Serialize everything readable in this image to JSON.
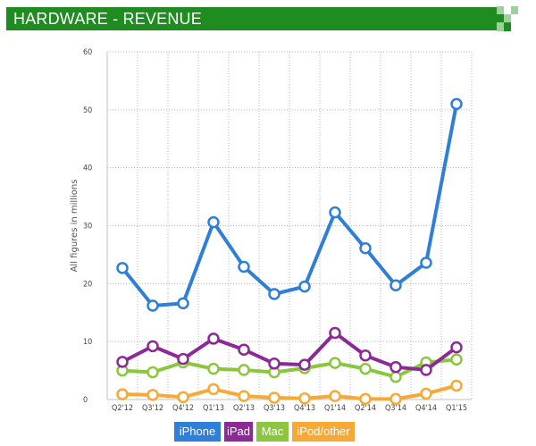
{
  "header": {
    "title": "HARDWARE - REVENUE"
  },
  "colors": {
    "banner": "#1e8c1e",
    "logo_light": "#9bd29b",
    "logo_dark": "#1e8c1e"
  },
  "chart_data": {
    "type": "line",
    "ylabel": "All figures in millions",
    "xlabel": "",
    "ylim": [
      0,
      60
    ],
    "yticks": [
      0,
      10,
      20,
      30,
      40,
      50,
      60
    ],
    "grid": true,
    "legend_position": "bottom",
    "categories": [
      "Q2'12",
      "Q3'12",
      "Q4'12",
      "Q1'13",
      "Q2'13",
      "Q3'13",
      "Q4'13",
      "Q1'14",
      "Q2'14",
      "Q3'14",
      "Q4'14",
      "Q1'15"
    ],
    "series": [
      {
        "name": "iPhone",
        "color": "#2f7ed8",
        "values": [
          22.7,
          16.2,
          16.6,
          30.6,
          22.9,
          18.2,
          19.5,
          32.3,
          26.1,
          19.7,
          23.6,
          51.0
        ]
      },
      {
        "name": "iPad",
        "color": "#8b2a96",
        "values": [
          6.5,
          9.2,
          7.0,
          10.5,
          8.6,
          6.2,
          6.0,
          11.5,
          7.6,
          5.6,
          5.1,
          9.0
        ]
      },
      {
        "name": "Mac",
        "color": "#8cc63f",
        "values": [
          5.0,
          4.7,
          6.4,
          5.3,
          5.1,
          4.7,
          5.4,
          6.3,
          5.3,
          3.9,
          6.4,
          6.9
        ]
      },
      {
        "name": "iPod/other",
        "color": "#f7a935",
        "values": [
          0.9,
          0.8,
          0.4,
          1.8,
          0.6,
          0.3,
          0.2,
          0.6,
          0.1,
          0.1,
          1.0,
          2.4
        ]
      }
    ]
  }
}
